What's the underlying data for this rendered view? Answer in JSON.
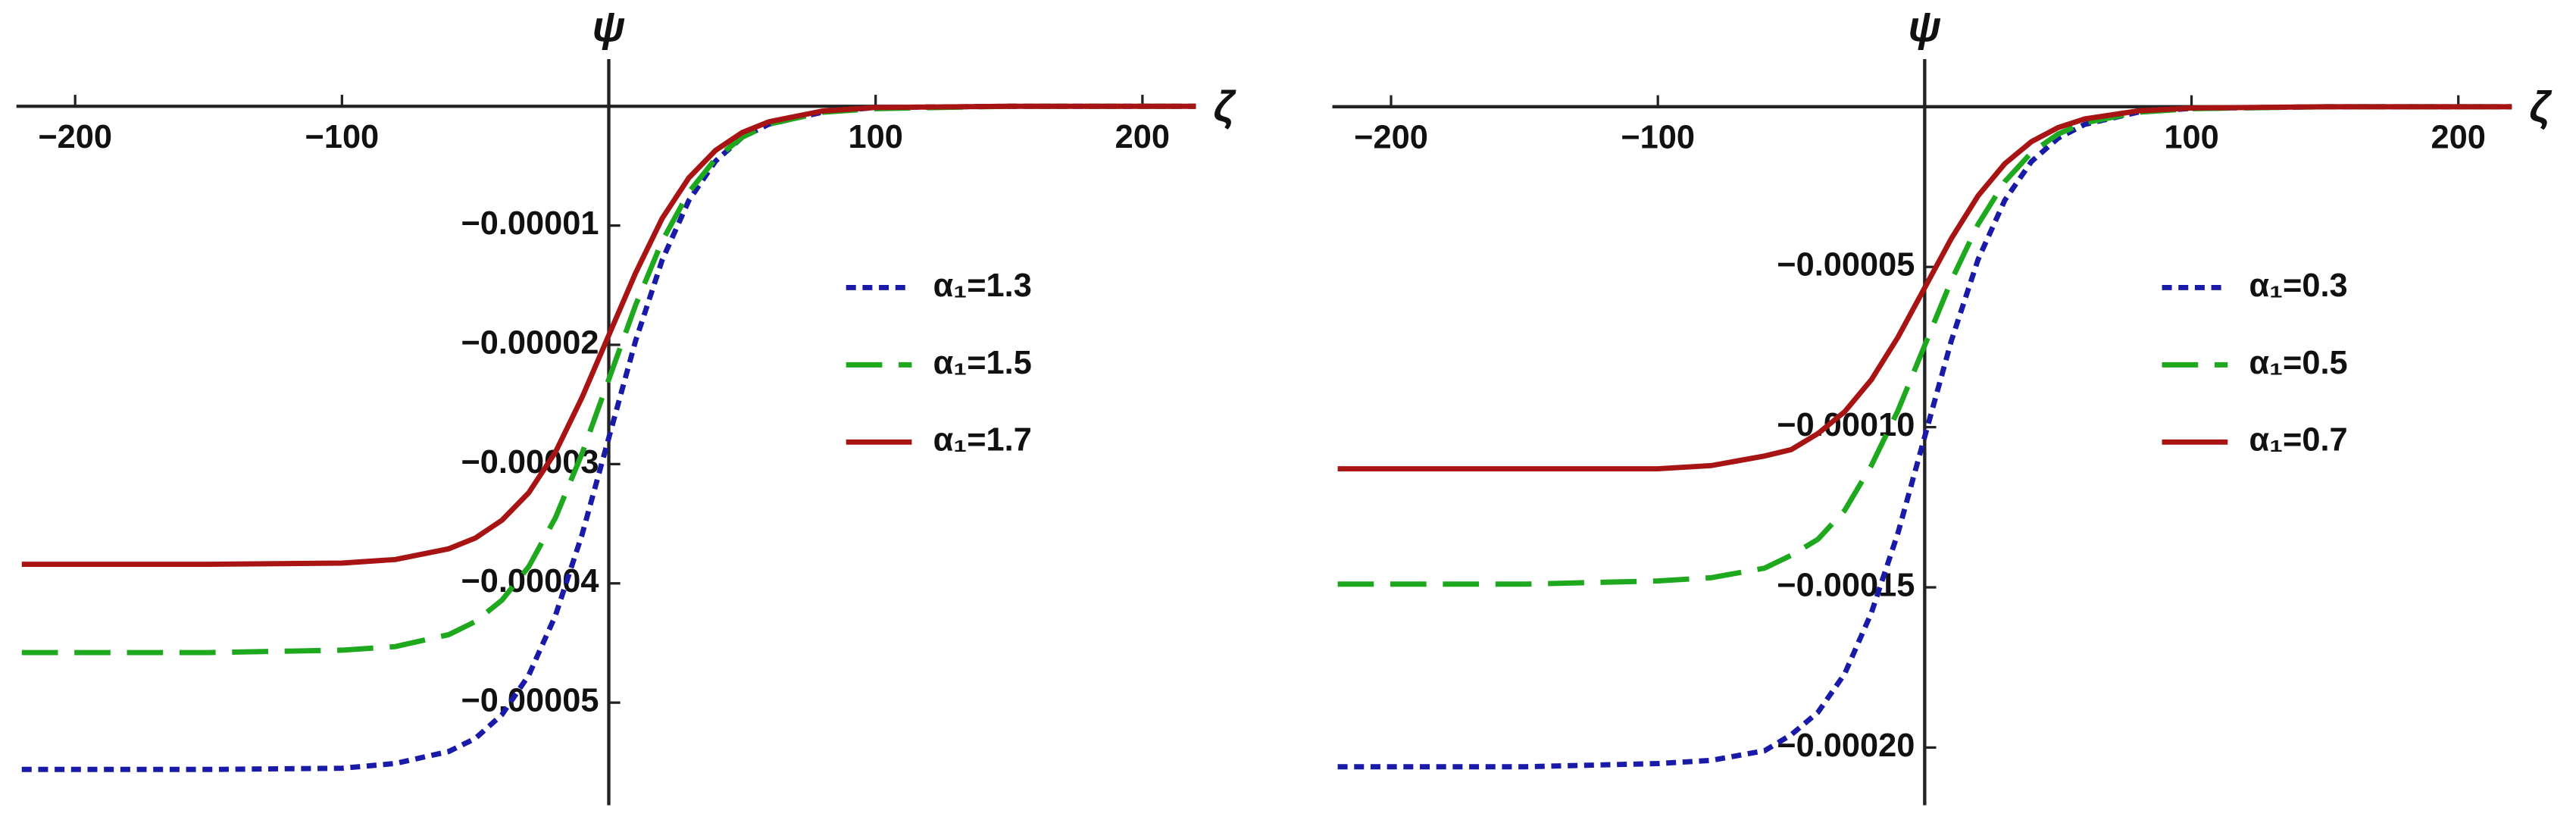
{
  "chart_data": [
    {
      "type": "line",
      "x_label": "ζ",
      "y_label": "ψ",
      "xlim": [
        -222,
        217
      ],
      "ylim": [
        -5.86e-05,
        3.4e-06
      ],
      "xticks": [
        {
          "value": -200,
          "label": "−200"
        },
        {
          "value": -100,
          "label": "−100"
        },
        100,
        200
      ],
      "yticks": [
        {
          "value": -1e-05,
          "label": "−0.00001"
        },
        {
          "value": -2e-05,
          "label": "−0.00002"
        },
        {
          "value": -3e-05,
          "label": "−0.00003"
        },
        {
          "value": -4e-05,
          "label": "−0.00004"
        },
        {
          "value": -5e-05,
          "label": "−0.00005"
        }
      ],
      "legend": "right",
      "x": [
        -220,
        -150,
        -100,
        -80,
        -60,
        -50,
        -40,
        -30,
        -20,
        -10,
        0,
        10,
        20,
        30,
        40,
        50,
        60,
        80,
        100,
        150,
        220
      ],
      "series": [
        {
          "name": "α₁=1.3",
          "color": "#1a1aa8",
          "dash": "short",
          "values": [
            -5.56e-05,
            -5.56e-05,
            -5.55e-05,
            -5.51e-05,
            -5.41e-05,
            -5.3e-05,
            -5.1e-05,
            -4.77e-05,
            -4.27e-05,
            -3.59e-05,
            -2.78e-05,
            -1.97e-05,
            -1.29e-05,
            -7.9e-06,
            -4.6e-06,
            -2.6e-06,
            -1.5e-06,
            -5e-07,
            -1e-07,
            0,
            0
          ]
        },
        {
          "name": "α₁=1.5",
          "color": "#1ea81e",
          "dash": "long",
          "values": [
            -4.58e-05,
            -4.58e-05,
            -4.56e-05,
            -4.53e-05,
            -4.43e-05,
            -4.32e-05,
            -4.14e-05,
            -3.86e-05,
            -3.45e-05,
            -2.91e-05,
            -2.29e-05,
            -1.67e-05,
            -1.13e-05,
            -7.2e-06,
            -4.4e-06,
            -2.6e-06,
            -1.5e-06,
            -5e-07,
            -2e-07,
            0,
            0
          ]
        },
        {
          "name": "α₁=1.7",
          "color": "#a81414",
          "dash": "solid",
          "values": [
            -3.84e-05,
            -3.84e-05,
            -3.83e-05,
            -3.8e-05,
            -3.71e-05,
            -3.62e-05,
            -3.47e-05,
            -3.24e-05,
            -2.9e-05,
            -2.44e-05,
            -1.92e-05,
            -1.4e-05,
            -9.4e-06,
            -6e-06,
            -3.7e-06,
            -2.2e-06,
            -1.3e-06,
            -4e-07,
            -1e-07,
            0,
            0
          ]
        }
      ]
    },
    {
      "type": "line",
      "x_label": "ζ",
      "y_label": "ψ",
      "xlim": [
        -222,
        217
      ],
      "ylim": [
        -0.000218,
        1.28e-05
      ],
      "xticks": [
        {
          "value": -200,
          "label": "−200"
        },
        {
          "value": -100,
          "label": "−100"
        },
        100,
        200
      ],
      "yticks": [
        {
          "value": -5e-05,
          "label": "−0.00005"
        },
        {
          "value": -0.0001,
          "label": "−0.00010"
        },
        {
          "value": -0.00015,
          "label": "−0.00015"
        },
        {
          "value": -0.0002,
          "label": "−0.00020"
        }
      ],
      "legend": "right",
      "x": [
        -220,
        -150,
        -100,
        -80,
        -60,
        -50,
        -40,
        -30,
        -20,
        -10,
        0,
        10,
        20,
        30,
        40,
        50,
        60,
        80,
        100,
        150,
        220
      ],
      "series": [
        {
          "name": "α₁=0.3",
          "color": "#1a1aa8",
          "dash": "short",
          "values": [
            -0.000206,
            -0.000206,
            -0.000205,
            -0.000204,
            -0.000201,
            -0.000196,
            -0.000189,
            -0.000177,
            -0.000158,
            -0.000133,
            -0.000103,
            -7.3e-05,
            -4.77e-05,
            -2.92e-05,
            -1.71e-05,
            -9.8e-06,
            -5.5e-06,
            -1.7e-06,
            -5e-07,
            0,
            0
          ]
        },
        {
          "name": "α₁=0.5",
          "color": "#1ea81e",
          "dash": "long",
          "values": [
            -0.000149,
            -0.000149,
            -0.000148,
            -0.000147,
            -0.000144,
            -0.00014,
            -0.000135,
            -0.000126,
            -0.000112,
            -9.48e-05,
            -7.45e-05,
            -5.42e-05,
            -3.67e-05,
            -2.34e-05,
            -1.43e-05,
            -8.5e-06,
            -5e-06,
            -1.7e-06,
            -6e-07,
            0,
            0
          ]
        },
        {
          "name": "α₁=0.7",
          "color": "#a81414",
          "dash": "solid",
          "values": [
            -0.000113,
            -0.000113,
            -0.000113,
            -0.000112,
            -0.000109,
            -0.000107,
            -0.000102,
            -9.52e-05,
            -8.52e-05,
            -7.19e-05,
            -5.65e-05,
            -4.11e-05,
            -2.78e-05,
            -1.78e-05,
            -1.09e-05,
            -6.5e-06,
            -3.8e-06,
            -1.3e-06,
            -4e-07,
            0,
            0
          ]
        }
      ]
    }
  ]
}
